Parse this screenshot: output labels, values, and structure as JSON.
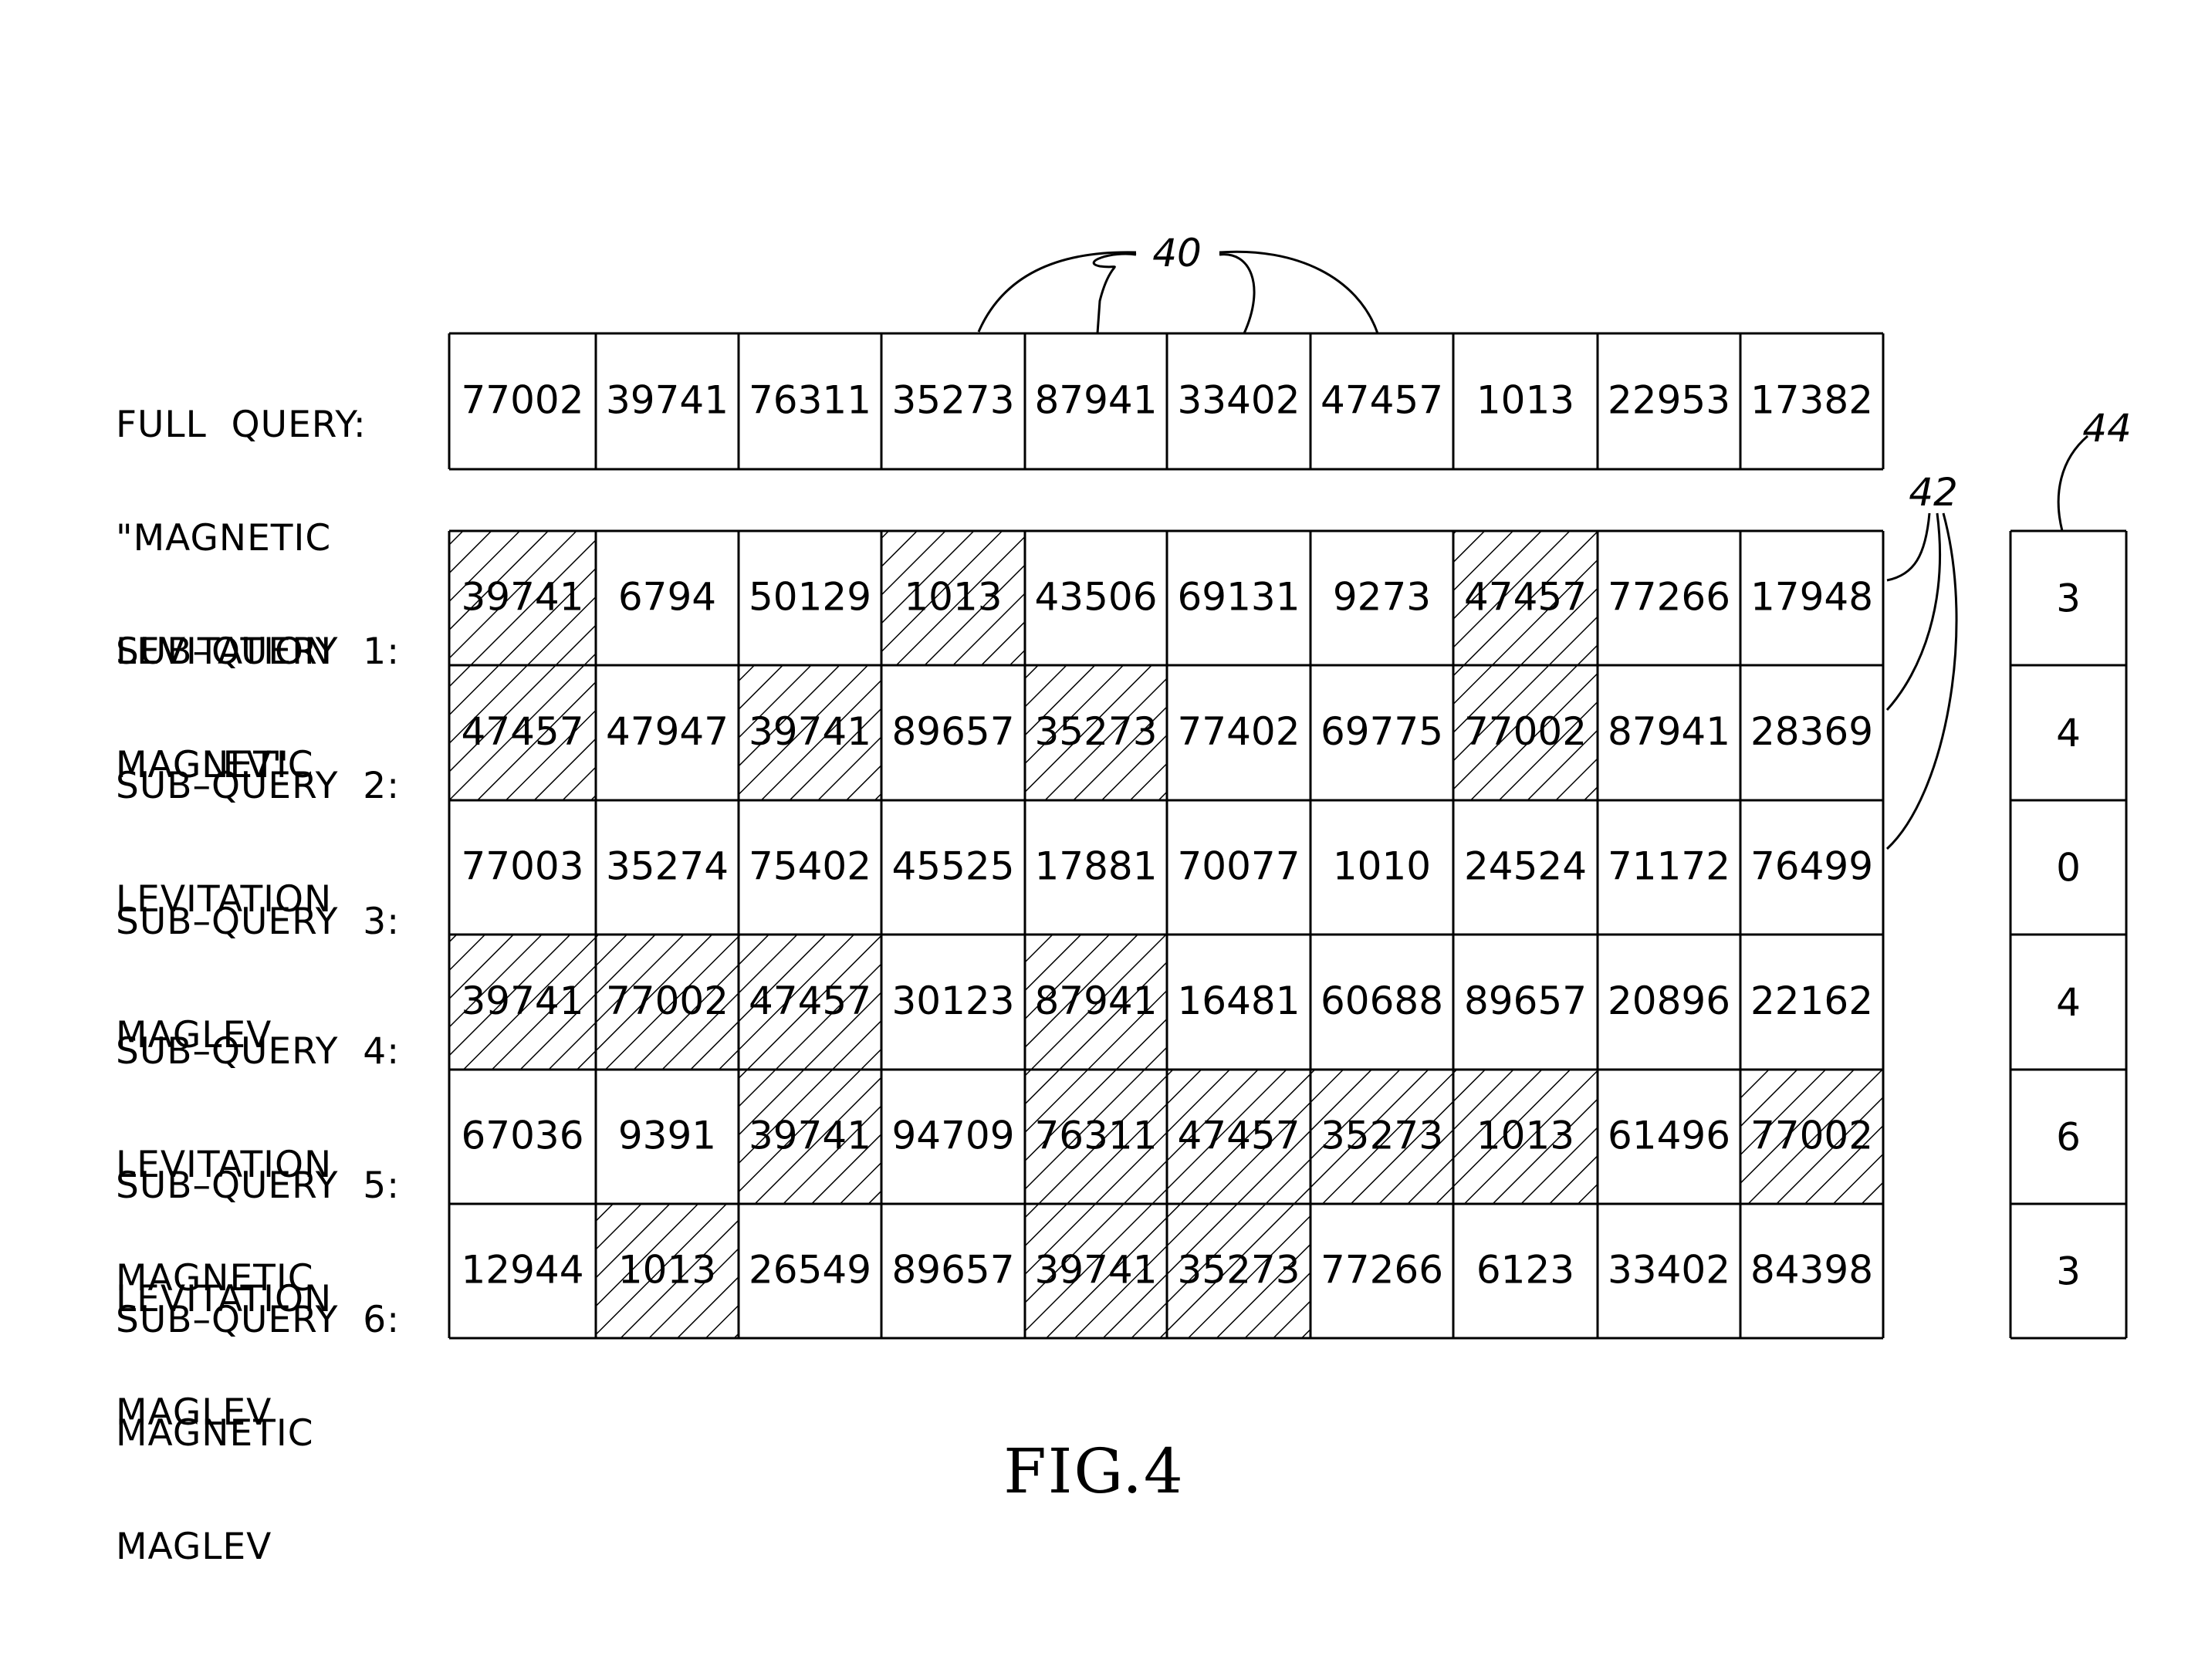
{
  "full_query": {
    "label_lines": [
      "FULL  QUERY:",
      "\"MAGNETIC",
      "LEVITATION",
      "MAGLEV\""
    ],
    "values": [
      "77002",
      "39741",
      "76311",
      "35273",
      "87941",
      "33402",
      "47457",
      "1013",
      "22953",
      "17382"
    ]
  },
  "sub_queries": [
    {
      "label_lines": [
        "SUB–QUERY  1:",
        "MAGNETIC"
      ],
      "cells": [
        {
          "value": "39741",
          "hatched": true
        },
        {
          "value": "6794",
          "hatched": false
        },
        {
          "value": "50129",
          "hatched": false
        },
        {
          "value": "1013",
          "hatched": true
        },
        {
          "value": "43506",
          "hatched": false
        },
        {
          "value": "69131",
          "hatched": false
        },
        {
          "value": "9273",
          "hatched": false
        },
        {
          "value": "47457",
          "hatched": true
        },
        {
          "value": "77266",
          "hatched": false
        },
        {
          "value": "17948",
          "hatched": false
        }
      ],
      "score": "3"
    },
    {
      "label_lines": [
        "SUB–QUERY  2:",
        "LEVITATION"
      ],
      "cells": [
        {
          "value": "47457",
          "hatched": true
        },
        {
          "value": "47947",
          "hatched": false
        },
        {
          "value": "39741",
          "hatched": true
        },
        {
          "value": "89657",
          "hatched": false
        },
        {
          "value": "35273",
          "hatched": true
        },
        {
          "value": "77402",
          "hatched": false
        },
        {
          "value": "69775",
          "hatched": false
        },
        {
          "value": "77002",
          "hatched": true
        },
        {
          "value": "87941",
          "hatched": false
        },
        {
          "value": "28369",
          "hatched": false
        }
      ],
      "score": "4"
    },
    {
      "label_lines": [
        "SUB–QUERY  3:",
        "MAGLEV"
      ],
      "cells": [
        {
          "value": "77003",
          "hatched": false
        },
        {
          "value": "35274",
          "hatched": false
        },
        {
          "value": "75402",
          "hatched": false
        },
        {
          "value": "45525",
          "hatched": false
        },
        {
          "value": "17881",
          "hatched": false
        },
        {
          "value": "70077",
          "hatched": false
        },
        {
          "value": "1010",
          "hatched": false
        },
        {
          "value": "24524",
          "hatched": false
        },
        {
          "value": "71172",
          "hatched": false
        },
        {
          "value": "76499",
          "hatched": false
        }
      ],
      "score": "0"
    },
    {
      "label_lines": [
        "SUB–QUERY  4:",
        "LEVITATION",
        "MAGNETIC"
      ],
      "cells": [
        {
          "value": "39741",
          "hatched": true
        },
        {
          "value": "77002",
          "hatched": true
        },
        {
          "value": "47457",
          "hatched": true
        },
        {
          "value": "30123",
          "hatched": false
        },
        {
          "value": "87941",
          "hatched": true
        },
        {
          "value": "16481",
          "hatched": false
        },
        {
          "value": "60688",
          "hatched": false
        },
        {
          "value": "89657",
          "hatched": false
        },
        {
          "value": "20896",
          "hatched": false
        },
        {
          "value": "22162",
          "hatched": false
        }
      ],
      "score": "4"
    },
    {
      "label_lines": [
        "SUB–QUERY  5:",
        "LEVITATION",
        "MAGLEV"
      ],
      "cells": [
        {
          "value": "67036",
          "hatched": false
        },
        {
          "value": "9391",
          "hatched": false
        },
        {
          "value": "39741",
          "hatched": true
        },
        {
          "value": "94709",
          "hatched": false
        },
        {
          "value": "76311",
          "hatched": true
        },
        {
          "value": "47457",
          "hatched": true
        },
        {
          "value": "35273",
          "hatched": true
        },
        {
          "value": "1013",
          "hatched": true
        },
        {
          "value": "61496",
          "hatched": false
        },
        {
          "value": "77002",
          "hatched": true
        }
      ],
      "score": "6"
    },
    {
      "label_lines": [
        "SUB–QUERY  6:",
        "MAGNETIC",
        "MAGLEV"
      ],
      "cells": [
        {
          "value": "12944",
          "hatched": false
        },
        {
          "value": "1013",
          "hatched": true
        },
        {
          "value": "26549",
          "hatched": false
        },
        {
          "value": "89657",
          "hatched": false
        },
        {
          "value": "39741",
          "hatched": true
        },
        {
          "value": "35273",
          "hatched": true
        },
        {
          "value": "77266",
          "hatched": false
        },
        {
          "value": "6123",
          "hatched": false
        },
        {
          "value": "33402",
          "hatched": false
        },
        {
          "value": "84398",
          "hatched": false
        }
      ],
      "score": "3"
    }
  ],
  "reference_numerals": {
    "full_query_hashes": "40",
    "sub_query_rows": "42",
    "score_column": "44"
  },
  "figure_caption": "FIG.4"
}
